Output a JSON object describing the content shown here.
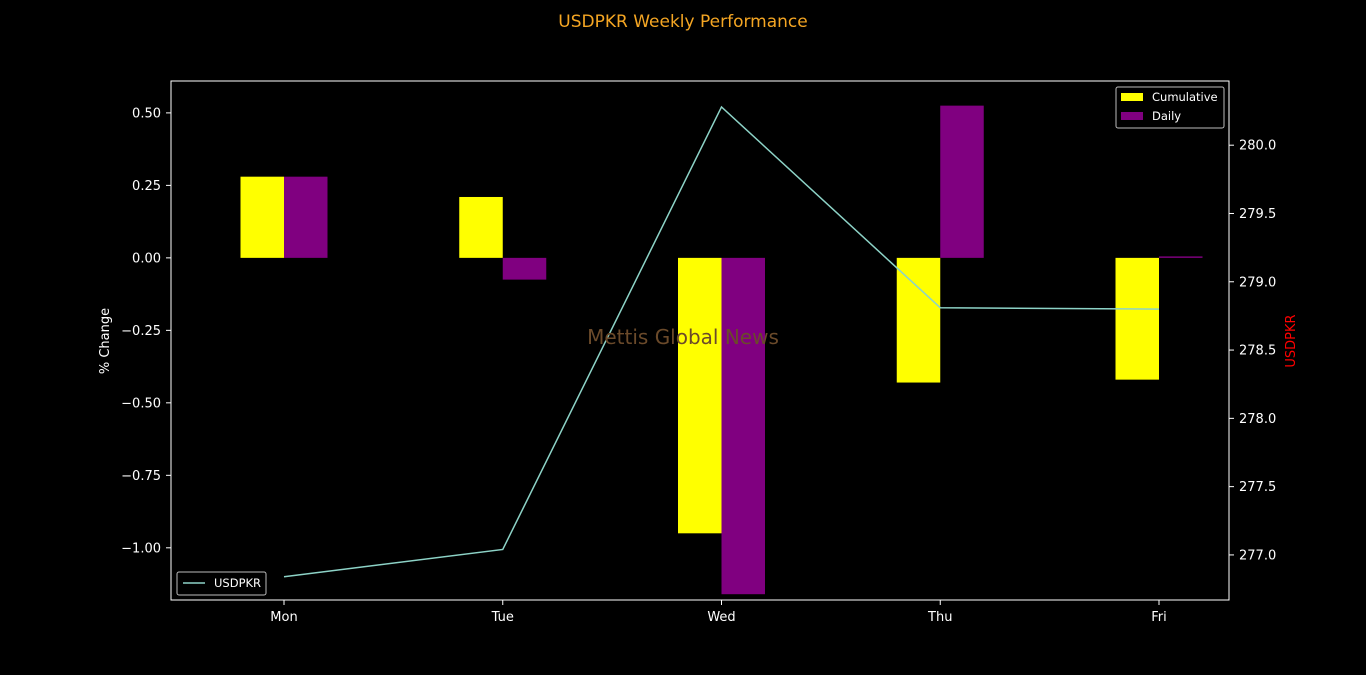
{
  "chart_data": {
    "type": "bar",
    "title": "USDPKR Weekly Performance",
    "categories": [
      "Mon",
      "Tue",
      "Wed",
      "Thu",
      "Fri"
    ],
    "ylabel": "% Change",
    "y2label": "USDPKR",
    "ylim": [
      -1.18,
      0.61
    ],
    "y2lim": [
      276.67,
      280.47
    ],
    "yticks": [
      0.5,
      0.25,
      0.0,
      -0.25,
      -0.5,
      -0.75,
      -1.0
    ],
    "yticklabels": [
      "0.50",
      "0.25",
      "0.00",
      "−0.25",
      "−0.50",
      "−0.75",
      "−1.00"
    ],
    "y2ticks": [
      280.0,
      279.5,
      279.0,
      278.5,
      278.0,
      277.5,
      277.0
    ],
    "y2ticklabels": [
      "280.0",
      "279.5",
      "279.0",
      "278.5",
      "278.0",
      "277.5",
      "277.0"
    ],
    "series": [
      {
        "name": "Cumulative",
        "axis": "left",
        "kind": "bar",
        "color": "#ffff00",
        "values": [
          0.28,
          0.21,
          -0.95,
          -0.43,
          -0.42
        ]
      },
      {
        "name": "Daily",
        "axis": "left",
        "kind": "bar",
        "color": "#800080",
        "values": [
          0.28,
          -0.075,
          -1.16,
          0.525,
          0.005
        ]
      },
      {
        "name": "USDPKR",
        "axis": "right",
        "kind": "line",
        "color": "#8dd3c7",
        "values": [
          276.84,
          277.04,
          280.28,
          278.81,
          278.8
        ]
      }
    ],
    "legend_bars": "top-right",
    "legend_line": "bottom-left",
    "watermark": "Mettis Global News",
    "colors": {
      "background": "#000000",
      "axes": "#ffffff",
      "title": "#f5a623",
      "y2label": "#ff0000",
      "watermark": "#6b4a2a"
    }
  }
}
